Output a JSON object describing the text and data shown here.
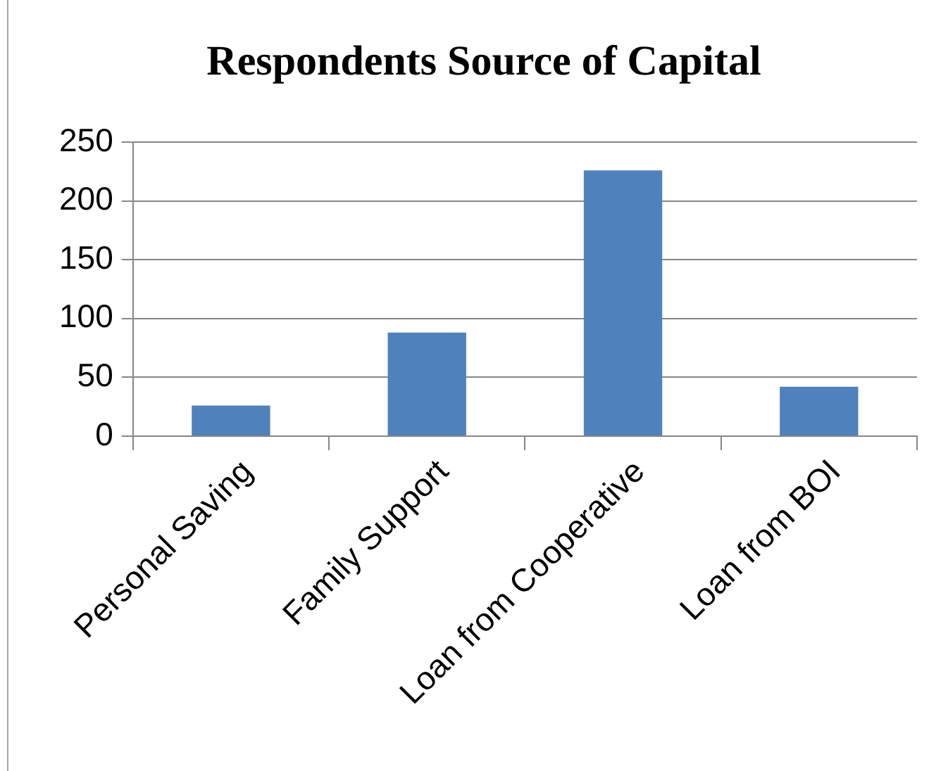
{
  "chart_data": {
    "type": "bar",
    "title": "Respondents Source of Capital",
    "categories": [
      "Personal Saving",
      "Family Support",
      "Loan from Cooperative",
      "Loan from BOI"
    ],
    "values": [
      26,
      88,
      226,
      42
    ],
    "color": "#4f81bd",
    "ylim": [
      0,
      250
    ],
    "yticks": [
      0,
      50,
      100,
      150,
      200,
      250
    ],
    "grid": "y"
  }
}
